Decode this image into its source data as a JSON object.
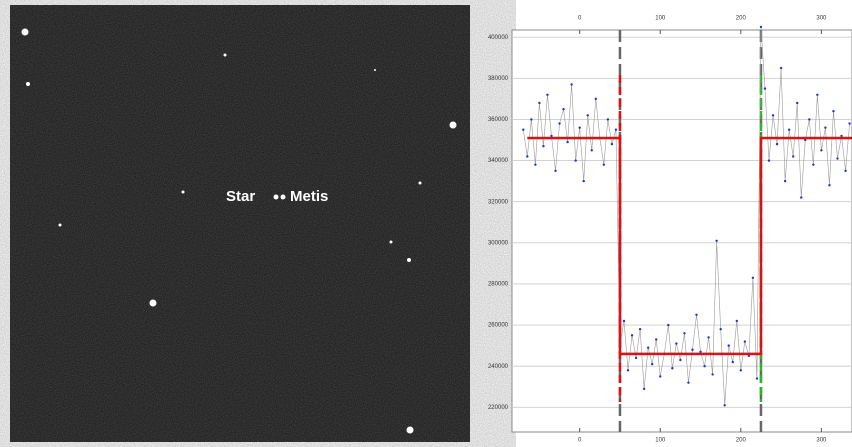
{
  "image": {
    "labels": [
      "Star",
      "Metis"
    ]
  },
  "chart_data": {
    "type": "scatter",
    "x": [
      -70,
      -65,
      -60,
      -55,
      -50,
      -45,
      -40,
      -35,
      -30,
      -25,
      -20,
      -15,
      -10,
      -5,
      0,
      5,
      10,
      15,
      20,
      25,
      30,
      35,
      40,
      45,
      50,
      55,
      60,
      65,
      70,
      75,
      80,
      85,
      90,
      95,
      100,
      105,
      110,
      115,
      120,
      125,
      130,
      135,
      140,
      145,
      150,
      155,
      160,
      165,
      170,
      175,
      180,
      185,
      190,
      195,
      200,
      205,
      210,
      215,
      220,
      225,
      230,
      235,
      240,
      245,
      250,
      255,
      260,
      265,
      270,
      275,
      280,
      285,
      290,
      295,
      300,
      305,
      310,
      315,
      320,
      325,
      330,
      335
    ],
    "series": [
      {
        "color": "#2233cc",
        "line_color": "#999999",
        "values": [
          355000,
          342000,
          360000,
          338000,
          368000,
          347000,
          372000,
          352000,
          335000,
          358000,
          365000,
          349000,
          377000,
          340000,
          356000,
          330000,
          362000,
          345000,
          370000,
          351000,
          338000,
          360000,
          348000,
          355000,
          250000,
          262000,
          238000,
          255000,
          244000,
          258000,
          229000,
          249000,
          241000,
          253000,
          235000,
          246000,
          260000,
          239000,
          251000,
          243000,
          256000,
          232000,
          248000,
          265000,
          247000,
          240000,
          254000,
          236000,
          301000,
          258000,
          221000,
          250000,
          242000,
          262000,
          238000,
          252000,
          245000,
          283000,
          234000,
          405000,
          375000,
          340000,
          362000,
          348000,
          385000,
          330000,
          355000,
          342000,
          368000,
          322000,
          350000,
          360000,
          338000,
          372000,
          345000,
          356000,
          328000,
          364000,
          341000,
          352000,
          335000,
          358000
        ]
      }
    ],
    "fit": {
      "color": "#dd1111",
      "x": [
        -65,
        50,
        50,
        225,
        225,
        340
      ],
      "values": [
        351000,
        351000,
        246000,
        246000,
        351000,
        351000
      ]
    },
    "vlines": [
      {
        "value": 50,
        "color": "#dd1111"
      },
      {
        "value": 225,
        "color": "#22bb22"
      }
    ],
    "xlim": [
      -84,
      338
    ],
    "ylim": [
      208000,
      403500
    ],
    "xticks": [
      0,
      100,
      200,
      300
    ],
    "yticks": [
      220000,
      240000,
      260000,
      280000,
      300000,
      320000,
      340000,
      360000,
      380000,
      400000
    ],
    "grid": true
  }
}
